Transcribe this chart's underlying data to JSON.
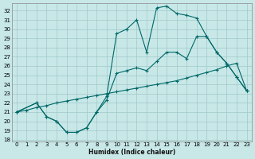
{
  "xlabel": "Humidex (Indice chaleur)",
  "bg_color": "#c8e8e8",
  "grid_color": "#a0c8c8",
  "line_color": "#006868",
  "xlim": [
    -0.5,
    23.5
  ],
  "ylim": [
    17.8,
    32.8
  ],
  "xticks": [
    0,
    1,
    2,
    3,
    4,
    5,
    6,
    7,
    8,
    9,
    10,
    11,
    12,
    13,
    14,
    15,
    16,
    17,
    18,
    19,
    20,
    21,
    22,
    23
  ],
  "yticks": [
    18,
    19,
    20,
    21,
    22,
    23,
    24,
    25,
    26,
    27,
    28,
    29,
    30,
    31,
    32
  ],
  "line1_x": [
    0,
    1,
    2,
    3,
    4,
    5,
    6,
    7,
    8,
    9,
    10,
    11,
    12,
    13,
    14,
    15,
    16,
    17,
    18,
    19,
    20,
    21,
    22,
    23
  ],
  "line1_y": [
    21.0,
    21.2,
    21.5,
    21.7,
    22.0,
    22.2,
    22.4,
    22.6,
    22.8,
    23.0,
    23.2,
    23.4,
    23.6,
    23.8,
    24.0,
    24.2,
    24.4,
    24.7,
    25.0,
    25.3,
    25.6,
    26.0,
    26.3,
    23.3
  ],
  "line2_x": [
    0,
    2,
    3,
    4,
    5,
    6,
    7,
    8,
    9,
    10,
    11,
    12,
    13,
    14,
    15,
    16,
    17,
    18,
    19,
    20,
    21,
    22,
    23
  ],
  "line2_y": [
    21.0,
    22.0,
    20.5,
    20.0,
    18.8,
    18.8,
    19.3,
    21.0,
    22.7,
    29.5,
    30.0,
    31.0,
    27.5,
    32.3,
    32.5,
    31.7,
    31.5,
    31.2,
    29.2,
    27.5,
    26.3,
    24.8,
    23.3
  ],
  "line3_x": [
    0,
    2,
    3,
    4,
    5,
    6,
    7,
    8,
    9,
    10,
    11,
    12,
    13,
    14,
    15,
    16,
    17,
    18,
    19,
    20,
    21,
    22,
    23
  ],
  "line3_y": [
    21.0,
    22.0,
    20.5,
    20.0,
    18.8,
    18.8,
    19.3,
    21.0,
    22.3,
    25.2,
    25.5,
    25.8,
    25.5,
    26.5,
    27.5,
    27.5,
    26.8,
    29.2,
    29.2,
    27.5,
    26.3,
    24.8,
    23.3
  ]
}
